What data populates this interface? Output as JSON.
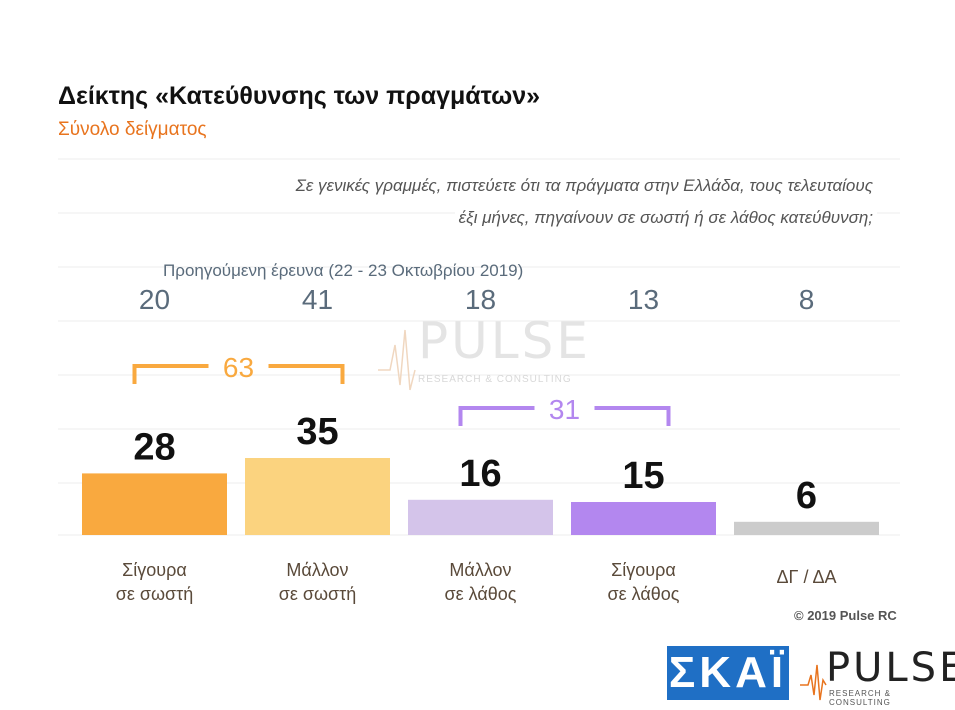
{
  "header": {
    "title": "Δείκτης «Κατεύθυνσης των πραγμάτων»",
    "subtitle": "Σύνολο δείγματος"
  },
  "question": {
    "line1": "Σε γενικές γραμμές, πιστεύετε ότι τα πράγματα στην Ελλάδα, τους τελευταίους",
    "line2": "έξι μήνες, πηγαίνουν σε σωστή ή σε λάθος κατεύθυνση;"
  },
  "previous_survey_label": "Προηγούμενη έρευνα  (22 - 23  Οκτωβρίου  2019)",
  "chart_data": {
    "type": "bar",
    "categories": [
      "Σίγουρα\nσε σωστή",
      "Μάλλον\nσε σωστή",
      "Μάλλον\nσε λάθος",
      "Σίγουρα\nσε λάθος",
      "ΔΓ / ΔΑ"
    ],
    "values": [
      28,
      35,
      16,
      15,
      6
    ],
    "previous_values": [
      20,
      41,
      18,
      13,
      8
    ],
    "colors": [
      "#f9a93f",
      "#fbd37f",
      "#d4c4ea",
      "#b387ef",
      "#cccccc"
    ],
    "groups": [
      {
        "label": "63",
        "color": "#f9a93f",
        "from": 0,
        "to": 1
      },
      {
        "label": "31",
        "color": "#b387ef",
        "from": 2,
        "to": 3
      }
    ],
    "gridlines": true
  },
  "watermark": {
    "brand": "PULSE",
    "tagline": "RESEARCH & CONSULTING"
  },
  "footer": {
    "copyright": "© 2019 Pulse RC",
    "skai_logo": "ΣΚΑΪ",
    "pulse_logo": "PULSE",
    "pulse_tagline": "RESEARCH & CONSULTING"
  }
}
